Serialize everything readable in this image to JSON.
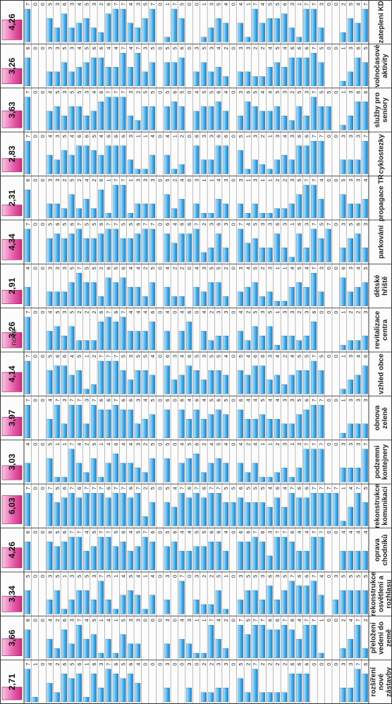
{
  "page_caption": "nové",
  "chart_data": {
    "type": "bar",
    "orientation": "rotated table of horizontal bars",
    "ylim": [
      0,
      7
    ],
    "grid": true,
    "bar_color": "#2f9fe0",
    "average_color": "#e0499e",
    "average_row_label": "",
    "categories": [
      "rozšíření nové zástavby",
      "přeložení vedení do země",
      "rekonstrukce osvětlení a rozhlasu",
      "oprava chodníků",
      "rekonstrukce komunikací",
      "podzemní kontejnery",
      "obnova zeleně",
      "vzhled obce",
      "revitalizace centra",
      "dětské hřiště",
      "parkování",
      "propagace TR",
      "cyklostezky",
      "služby pro seniory",
      "volnočasové aktivity",
      "zateplení KD"
    ],
    "averages": [
      "2,71",
      "3,66",
      "3,34",
      "4,26",
      "6,03",
      "3,03",
      "3,97",
      "4,14",
      "3,26",
      "2,91",
      "4,34",
      "2,31",
      "2,83",
      "3,63",
      "3,26",
      "4,26"
    ],
    "series": [
      {
        "values": [
          6,
          2,
          5,
          4,
          5,
          7,
          3,
          6,
          3,
          5,
          3,
          4,
          7,
          6,
          5,
          7
        ]
      },
      {
        "values": [
          7,
          7,
          5,
          4,
          7,
          3,
          3,
          4,
          2,
          4,
          6,
          3,
          3,
          6,
          6,
          4
        ]
      },
      {
        "values": [
          3,
          4,
          5,
          4,
          4,
          3,
          3,
          3,
          2,
          3,
          5,
          3,
          3,
          3,
          3,
          5
        ]
      },
      {
        "values": [
          3,
          2,
          5,
          4,
          1,
          3,
          1,
          1,
          1,
          6,
          3,
          5,
          3,
          1,
          1,
          2
        ]
      },
      {
        "values": [
          0,
          0,
          3,
          0,
          7,
          0,
          0,
          0,
          0,
          0,
          0,
          0,
          0,
          0,
          0,
          0
        ]
      },
      {
        "values": [
          0,
          0,
          0,
          0,
          7,
          0,
          0,
          0,
          0,
          0,
          7,
          0,
          0,
          5,
          0,
          0
        ]
      },
      {
        "values": [
          0,
          1,
          4,
          7,
          7,
          7,
          7,
          5,
          0,
          3,
          5,
          4,
          7,
          5,
          5,
          3
        ]
      },
      {
        "values": [
          0,
          7,
          7,
          7,
          7,
          7,
          7,
          7,
          6,
          7,
          7,
          7,
          7,
          7,
          7,
          7
        ]
      },
      {
        "values": [
          6,
          7,
          6,
          4,
          6,
          7,
          6,
          5,
          3,
          4,
          3,
          7,
          6,
          3,
          6,
          7
        ]
      },
      {
        "values": [
          6,
          4,
          6,
          4,
          6,
          3,
          5,
          5,
          2,
          5,
          6,
          5,
          6,
          5,
          6,
          1
        ]
      },
      {
        "values": [
          6,
          6,
          7,
          6,
          7,
          1,
          3,
          4,
          3,
          4,
          1,
          3,
          3,
          2,
          6,
          3
        ]
      },
      {
        "values": [
          2,
          7,
          5,
          7,
          4,
          3,
          3,
          2,
          3,
          1,
          3,
          2,
          4,
          3,
          4,
          6
        ]
      },
      {
        "values": [
          2,
          6,
          3,
          7,
          6,
          2,
          4,
          4,
          1,
          1,
          6,
          2,
          3,
          5,
          5,
          5
        ]
      },
      {
        "values": [
          2,
          6,
          6,
          3,
          4,
          1,
          4,
          3,
          5,
          3,
          3,
          1,
          1,
          4,
          4,
          5
        ]
      },
      {
        "values": [
          2,
          7,
          3,
          6,
          5,
          1,
          5,
          6,
          3,
          2,
          3,
          1,
          2,
          4,
          2,
          4
        ]
      },
      {
        "values": [
          7,
          7,
          5,
          7,
          5,
          4,
          4,
          6,
          5,
          5,
          5,
          3,
          3,
          5,
          2,
          7
        ]
      },
      {
        "values": [
          2,
          5,
          5,
          6,
          5,
          2,
          4,
          4,
          2,
          4,
          4,
          1,
          1,
          6,
          3,
          1
        ]
      },
      {
        "values": [
          5,
          7,
          3,
          6,
          6,
          4,
          6,
          5,
          4,
          3,
          7,
          3,
          5,
          3,
          3,
          4
        ]
      },
      {
        "values": [
          0,
          0,
          0,
          0,
          5,
          0,
          0,
          0,
          0,
          0,
          0,
          0,
          0,
          0,
          0,
          0
        ]
      },
      {
        "values": [
          3,
          2,
          1,
          4,
          5,
          4,
          5,
          4,
          3,
          2,
          3,
          3,
          6,
          4,
          2,
          4
        ]
      },
      {
        "values": [
          3,
          4,
          5,
          6,
          7,
          5,
          6,
          5,
          3,
          5,
          6,
          4,
          6,
          6,
          4,
          5
        ]
      },
      {
        "values": [
          2,
          7,
          2,
          6,
          7,
          4,
          5,
          5,
          2,
          5,
          3,
          1,
          3,
          5,
          3,
          3
        ]
      },
      {
        "values": [
          2,
          1,
          2,
          5,
          6,
          2,
          4,
          3,
          4,
          3,
          2,
          1,
          3,
          5,
          5,
          1
        ]
      },
      {
        "values": [
          0,
          1,
          3,
          5,
          7,
          6,
          6,
          5,
          0,
          4,
          7,
          3,
          6,
          4,
          3,
          0
        ]
      },
      {
        "values": [
          3,
          3,
          0,
          4,
          6,
          5,
          4,
          6,
          6,
          0,
          6,
          0,
          0,
          0,
          0,
          0
        ]
      },
      {
        "values": [
          0,
          4,
          7,
          4,
          7,
          4,
          6,
          4,
          4,
          2,
          6,
          4,
          2,
          5,
          6,
          5
        ]
      },
      {
        "values": [
          0,
          0,
          0,
          6,
          4,
          0,
          0,
          3,
          0,
          2,
          4,
          2,
          1,
          6,
          5,
          7
        ]
      },
      {
        "values": [
          3,
          3,
          3,
          5,
          5,
          5,
          6,
          6,
          4,
          4,
          6,
          5,
          4,
          5,
          5,
          1
        ]
      },
      {
        "values": [
          0,
          0,
          0,
          0,
          0,
          0,
          0,
          0,
          0,
          0,
          0,
          0,
          0,
          0,
          0,
          0
        ]
      },
      {
        "values": [
          0,
          0,
          4,
          6,
          5,
          5,
          5,
          4,
          6,
          5,
          7,
          3,
          4,
          5,
          5,
          7
        ]
      },
      {
        "values": [
          0,
          0,
          1,
          7,
          2,
          2,
          4,
          5,
          4,
          2,
          7,
          3,
          1,
          5,
          3,
          5
        ]
      },
      {
        "values": [
          4,
          3,
          4,
          5,
          7,
          3,
          3,
          5,
          4,
          4,
          6,
          3,
          1,
          2,
          7,
          3
        ]
      },
      {
        "values": [
          6,
          3,
          5,
          4,
          6,
          4,
          6,
          3,
          4,
          4,
          5,
          1,
          3,
          3,
          4,
          4
        ]
      },
      {
        "values": [
          5,
          5,
          4,
          6,
          7,
          4,
          6,
          5,
          7,
          6,
          5,
          7,
          6,
          7,
          7,
          7
        ]
      },
      {
        "values": [
          6,
          1,
          1,
          5,
          7,
          6,
          7,
          7,
          6,
          5,
          7,
          7,
          6,
          7,
          4,
          7
        ]
      },
      {
        "values": [
          7,
          4,
          3,
          7,
          6,
          4,
          6,
          7,
          7,
          6,
          7,
          1,
          6,
          7,
          4,
          6
        ]
      },
      {
        "values": [
          3,
          1,
          7,
          7,
          7,
          1,
          6,
          7,
          6,
          2,
          6,
          6,
          4,
          6,
          6,
          2
        ]
      },
      {
        "values": [
          6,
          5,
          3,
          5,
          7,
          5,
          7,
          2,
          2,
          5,
          5,
          2,
          5,
          4,
          6,
          3
        ]
      },
      {
        "values": [
          1,
          4,
          5,
          4,
          7,
          2,
          3,
          1,
          2,
          5,
          5,
          4,
          6,
          3,
          5,
          5
        ]
      },
      {
        "values": [
          6,
          7,
          5,
          7,
          6,
          4,
          7,
          5,
          2,
          7,
          7,
          2,
          6,
          5,
          4,
          4
        ]
      },
      {
        "values": [
          5,
          3,
          3,
          7,
          7,
          7,
          7,
          4,
          5,
          5,
          6,
          5,
          4,
          5,
          3,
          3
        ]
      },
      {
        "values": [
          6,
          6,
          1,
          6,
          6,
          1,
          3,
          6,
          3,
          3,
          5,
          2,
          5,
          3,
          5,
          6
        ]
      },
      {
        "values": [
          2,
          2,
          5,
          5,
          5,
          1,
          7,
          6,
          5,
          3,
          6,
          3,
          3,
          5,
          3,
          3
        ]
      },
      {
        "values": [
          4,
          4,
          3,
          6,
          7,
          5,
          4,
          5,
          4,
          3,
          5,
          3,
          4,
          4,
          3,
          5
        ]
      },
      {
        "values": [
          0,
          0,
          0,
          0,
          0,
          0,
          0,
          0,
          0,
          0,
          0,
          0,
          0,
          0,
          0,
          0
        ]
      },
      {
        "values": [
          1,
          0,
          0,
          0,
          0,
          0,
          0,
          0,
          0,
          0,
          0,
          0,
          0,
          0,
          0,
          0
        ]
      },
      {
        "values": [
          7,
          6,
          5,
          6,
          7,
          4,
          7,
          7,
          7,
          4,
          7,
          6,
          7,
          7,
          6,
          7
        ]
      }
    ]
  }
}
